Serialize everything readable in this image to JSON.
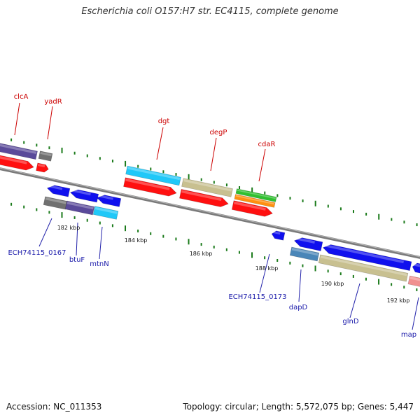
{
  "title": "Escherichia coli O157:H7 str. EC4115, complete genome",
  "footer": {
    "accession": "Accession: NC_011353",
    "summary": "Topology: circular; Length: 5,572,075 bp; Genes: 5,447"
  },
  "colors": {
    "background": "#ffffff",
    "backbone": "#8a8a8a",
    "tick": "#1a7a1a",
    "label_top": "#cc0000",
    "label_bottom": "#1a1aaa",
    "leader_top": "#cc0000",
    "leader_bottom": "#2222aa"
  },
  "scale_labels": [
    "182 kbp",
    "184 kbp",
    "186 kbp",
    "188 kbp",
    "190 kbp",
    "192 kbp"
  ],
  "gene_labels_top": [
    "clcA",
    "yadR",
    "dgt",
    "degP",
    "cdaR"
  ],
  "gene_labels_bottom": [
    "ECH74115_0167",
    "btuF",
    "mtnN",
    "ECH74115_0173",
    "dapD",
    "glnD",
    "map"
  ],
  "feature_colors": {
    "cds_red": "#ff1010",
    "cds_blue": "#1010ee",
    "purple": "#5a4a9a",
    "gray": "#707070",
    "cyan": "#20c8f8",
    "khaki": "#c8c090",
    "green": "#30c030",
    "orange": "#ff9010",
    "steel": "#4a86b8",
    "pink": "#f09090"
  }
}
